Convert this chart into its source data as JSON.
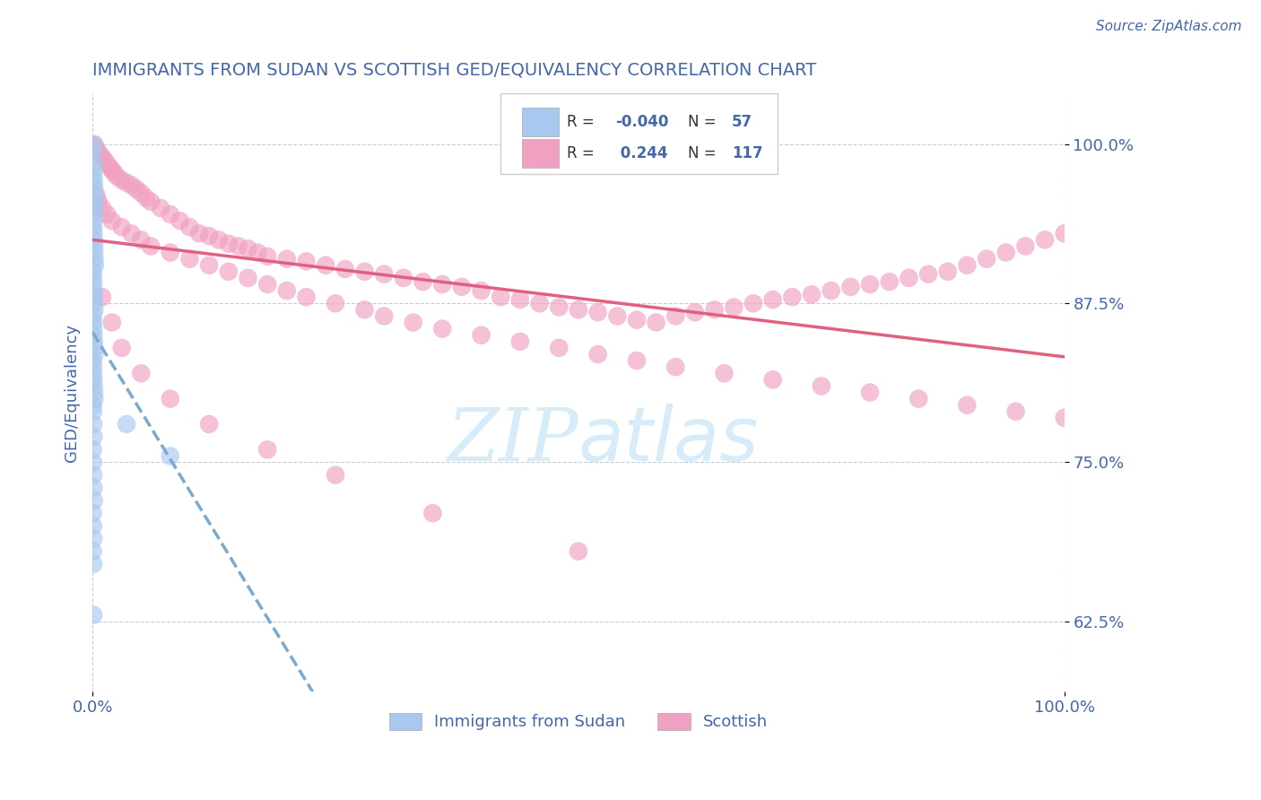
{
  "title": "IMMIGRANTS FROM SUDAN VS SCOTTISH GED/EQUIVALENCY CORRELATION CHART",
  "source": "Source: ZipAtlas.com",
  "ylabel": "GED/Equivalency",
  "legend_label1": "Immigrants from Sudan",
  "legend_label2": "Scottish",
  "r1": -0.04,
  "n1": 57,
  "r2": 0.244,
  "n2": 117,
  "yticks": [
    62.5,
    75.0,
    87.5,
    100.0
  ],
  "ytick_labels": [
    "62.5%",
    "75.0%",
    "87.5%",
    "100.0%"
  ],
  "xlim": [
    0.0,
    100.0
  ],
  "ylim": [
    57.0,
    104.0
  ],
  "color_blue": "#A8C8F0",
  "color_pink": "#F0A0C0",
  "color_blue_line": "#5588CC",
  "color_pink_line": "#E06080",
  "color_title_blue": "#4466AA",
  "color_axis_blue": "#4466AA",
  "background": "#FFFFFF",
  "watermark_color": "#D0E8F8",
  "sudan_x": [
    0.05,
    0.05,
    0.08,
    0.1,
    0.12,
    0.15,
    0.18,
    0.2,
    0.22,
    0.25,
    0.05,
    0.08,
    0.1,
    0.12,
    0.15,
    0.18,
    0.2,
    0.22,
    0.25,
    0.05,
    0.08,
    0.1,
    0.12,
    0.15,
    0.18,
    0.2,
    0.05,
    0.08,
    0.1,
    0.12,
    0.15,
    0.18,
    0.2,
    0.05,
    0.08,
    0.1,
    0.12,
    0.15,
    0.18,
    0.2,
    0.05,
    0.08,
    0.1,
    0.12,
    0.05,
    0.08,
    0.1,
    0.12,
    0.15,
    0.05,
    0.08,
    0.1,
    3.5,
    8.0,
    0.05,
    0.08,
    0.1
  ],
  "sudan_y": [
    100.0,
    99.5,
    98.5,
    98.0,
    97.5,
    97.0,
    96.5,
    96.0,
    95.5,
    95.0,
    94.5,
    94.0,
    93.5,
    93.0,
    92.5,
    92.0,
    91.5,
    91.0,
    90.5,
    90.0,
    89.5,
    89.0,
    88.5,
    88.0,
    87.5,
    87.0,
    86.5,
    86.0,
    85.5,
    85.0,
    84.5,
    84.0,
    83.5,
    83.0,
    82.5,
    82.0,
    81.5,
    81.0,
    80.5,
    80.0,
    79.5,
    79.0,
    78.0,
    77.0,
    76.0,
    75.0,
    74.0,
    73.0,
    72.0,
    71.0,
    70.0,
    69.0,
    78.0,
    75.5,
    68.0,
    67.0,
    63.0
  ],
  "scottish_x": [
    0.2,
    0.3,
    0.5,
    0.8,
    1.0,
    1.2,
    1.5,
    1.8,
    2.0,
    2.2,
    2.5,
    3.0,
    3.5,
    4.0,
    4.5,
    5.0,
    5.5,
    6.0,
    7.0,
    8.0,
    9.0,
    10.0,
    11.0,
    12.0,
    13.0,
    14.0,
    15.0,
    16.0,
    17.0,
    18.0,
    20.0,
    22.0,
    24.0,
    26.0,
    28.0,
    30.0,
    32.0,
    34.0,
    36.0,
    38.0,
    40.0,
    42.0,
    44.0,
    46.0,
    48.0,
    50.0,
    52.0,
    54.0,
    56.0,
    58.0,
    60.0,
    62.0,
    64.0,
    66.0,
    68.0,
    70.0,
    72.0,
    74.0,
    76.0,
    78.0,
    80.0,
    82.0,
    84.0,
    86.0,
    88.0,
    90.0,
    92.0,
    94.0,
    96.0,
    98.0,
    100.0,
    0.4,
    0.6,
    1.0,
    1.5,
    2.0,
    3.0,
    4.0,
    5.0,
    6.0,
    8.0,
    10.0,
    12.0,
    14.0,
    16.0,
    18.0,
    20.0,
    22.0,
    25.0,
    28.0,
    30.0,
    33.0,
    36.0,
    40.0,
    44.0,
    48.0,
    52.0,
    56.0,
    60.0,
    65.0,
    70.0,
    75.0,
    80.0,
    85.0,
    90.0,
    95.0,
    100.0,
    1.0,
    2.0,
    3.0,
    5.0,
    8.0,
    12.0,
    18.0,
    25.0,
    35.0,
    50.0
  ],
  "scottish_y": [
    100.0,
    99.8,
    99.5,
    99.2,
    99.0,
    98.8,
    98.5,
    98.2,
    98.0,
    97.8,
    97.5,
    97.2,
    97.0,
    96.8,
    96.5,
    96.2,
    95.8,
    95.5,
    95.0,
    94.5,
    94.0,
    93.5,
    93.0,
    92.8,
    92.5,
    92.2,
    92.0,
    91.8,
    91.5,
    91.2,
    91.0,
    90.8,
    90.5,
    90.2,
    90.0,
    89.8,
    89.5,
    89.2,
    89.0,
    88.8,
    88.5,
    88.0,
    87.8,
    87.5,
    87.2,
    87.0,
    86.8,
    86.5,
    86.2,
    86.0,
    86.5,
    86.8,
    87.0,
    87.2,
    87.5,
    87.8,
    88.0,
    88.2,
    88.5,
    88.8,
    89.0,
    89.2,
    89.5,
    89.8,
    90.0,
    90.5,
    91.0,
    91.5,
    92.0,
    92.5,
    93.0,
    96.0,
    95.5,
    95.0,
    94.5,
    94.0,
    93.5,
    93.0,
    92.5,
    92.0,
    91.5,
    91.0,
    90.5,
    90.0,
    89.5,
    89.0,
    88.5,
    88.0,
    87.5,
    87.0,
    86.5,
    86.0,
    85.5,
    85.0,
    84.5,
    84.0,
    83.5,
    83.0,
    82.5,
    82.0,
    81.5,
    81.0,
    80.5,
    80.0,
    79.5,
    79.0,
    78.5,
    88.0,
    86.0,
    84.0,
    82.0,
    80.0,
    78.0,
    76.0,
    74.0,
    71.0,
    68.0
  ],
  "trend_line_color_blue": "#7AAAD0",
  "trend_line_color_pink": "#E06080"
}
